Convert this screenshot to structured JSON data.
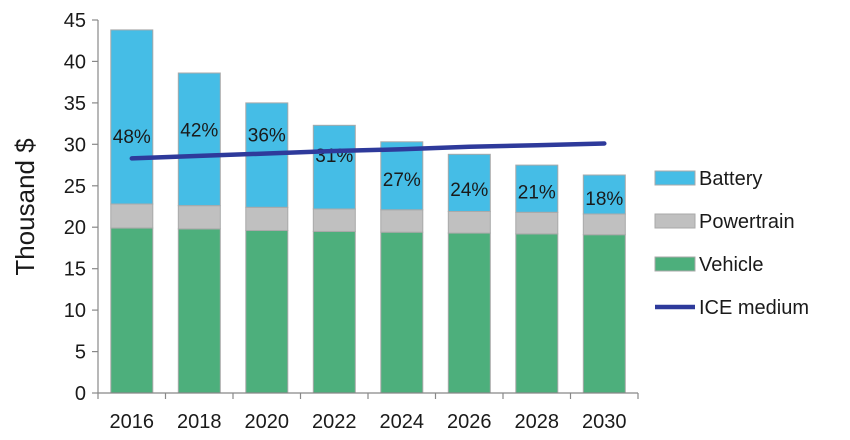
{
  "chart_data": {
    "type": "bar",
    "stacked": true,
    "categories": [
      "2016",
      "2018",
      "2020",
      "2022",
      "2024",
      "2026",
      "2028",
      "2030"
    ],
    "series": [
      {
        "name": "Vehicle",
        "color": "#4daf7c",
        "values": [
          19.9,
          19.8,
          19.6,
          19.5,
          19.4,
          19.3,
          19.2,
          19.1
        ]
      },
      {
        "name": "Powertrain",
        "color": "#c0c0c0",
        "values": [
          2.9,
          2.8,
          2.8,
          2.7,
          2.7,
          2.6,
          2.6,
          2.5
        ]
      },
      {
        "name": "Battery",
        "color": "#45bde6",
        "values": [
          21.0,
          16.0,
          12.6,
          10.1,
          8.2,
          6.9,
          5.7,
          4.7
        ]
      }
    ],
    "line_series": {
      "name": "ICE medium",
      "color": "#2e3a9b",
      "values": [
        28.3,
        28.6,
        28.9,
        29.2,
        29.4,
        29.7,
        29.9,
        30.1
      ]
    },
    "bar_labels": [
      "48%",
      "42%",
      "36%",
      "31%",
      "27%",
      "24%",
      "21%",
      "18%"
    ],
    "ylabel": "Thousand $",
    "xlabel": "",
    "ylim": [
      0,
      45
    ],
    "yticks": [
      "0",
      "5",
      "10",
      "15",
      "20",
      "25",
      "30",
      "35",
      "40",
      "45"
    ],
    "grid": false,
    "legend_position": "right",
    "legend": [
      "Battery",
      "Powertrain",
      "Vehicle",
      "ICE medium"
    ]
  }
}
